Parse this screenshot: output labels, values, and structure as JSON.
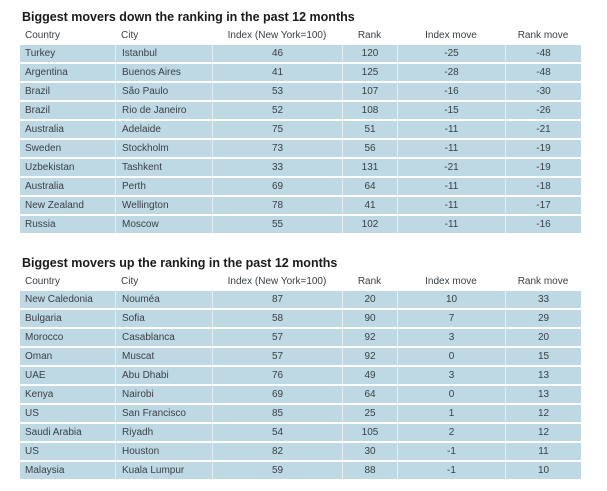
{
  "colors": {
    "row_background": "#bed9e4",
    "column_divider": "#e6f0f4",
    "title_text": "#1a1a1a",
    "header_text": "#2e3438",
    "cell_text": "#3a4045"
  },
  "chart_data": [
    {
      "type": "table",
      "title": "Biggest movers down the ranking in the past 12 months",
      "columns": [
        "Country",
        "City",
        "Index (New York=100)",
        "Rank",
        "Index move",
        "Rank move"
      ],
      "rows": [
        [
          "Turkey",
          "Istanbul",
          46,
          120,
          -25,
          -48
        ],
        [
          "Argentina",
          "Buenos Aires",
          41,
          125,
          -28,
          -48
        ],
        [
          "Brazil",
          "São Paulo",
          53,
          107,
          -16,
          -30
        ],
        [
          "Brazil",
          "Rio de Janeiro",
          52,
          108,
          -15,
          -26
        ],
        [
          "Australia",
          "Adelaide",
          75,
          51,
          -11,
          -21
        ],
        [
          "Sweden",
          "Stockholm",
          73,
          56,
          -11,
          -19
        ],
        [
          "Uzbekistan",
          "Tashkent",
          33,
          131,
          -21,
          -19
        ],
        [
          "Australia",
          "Perth",
          69,
          64,
          -11,
          -18
        ],
        [
          "New Zealand",
          "Wellington",
          78,
          41,
          -11,
          -17
        ],
        [
          "Russia",
          "Moscow",
          55,
          102,
          -11,
          -16
        ]
      ]
    },
    {
      "type": "table",
      "title": "Biggest movers up the ranking in the past 12 months",
      "columns": [
        "Country",
        "City",
        "Index (New York=100)",
        "Rank",
        "Index move",
        "Rank move"
      ],
      "rows": [
        [
          "New Caledonia",
          "Nouméa",
          87,
          20,
          10,
          33
        ],
        [
          "Bulgaria",
          "Sofia",
          58,
          90,
          7,
          29
        ],
        [
          "Morocco",
          "Casablanca",
          57,
          92,
          3,
          20
        ],
        [
          "Oman",
          "Muscat",
          57,
          92,
          0,
          15
        ],
        [
          "UAE",
          "Abu Dhabi",
          76,
          49,
          3,
          13
        ],
        [
          "Kenya",
          "Nairobi",
          69,
          64,
          0,
          13
        ],
        [
          "US",
          "San Francisco",
          85,
          25,
          1,
          12
        ],
        [
          "Saudi Arabia",
          "Riyadh",
          54,
          105,
          2,
          12
        ],
        [
          "US",
          "Houston",
          82,
          30,
          -1,
          11
        ],
        [
          "Malaysia",
          "Kuala Lumpur",
          59,
          88,
          -1,
          10
        ]
      ]
    }
  ]
}
